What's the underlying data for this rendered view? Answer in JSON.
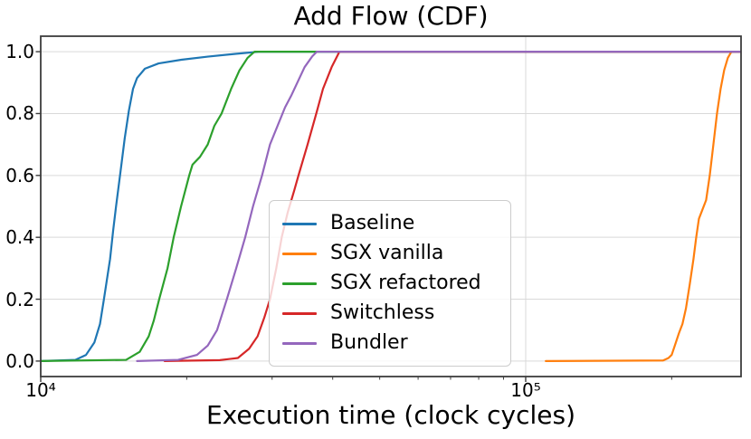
{
  "title": {
    "text": "Add Flow (CDF)"
  },
  "chart_data": {
    "type": "line",
    "title": "Add Flow (CDF)",
    "xlabel": "Execution time (clock cycles)",
    "ylabel": "",
    "x_scale": "log",
    "x_range": [
      10000,
      278000
    ],
    "y_range": [
      -0.05,
      1.05
    ],
    "grid": true,
    "legend_position": "inside lower-center",
    "x_ticks": [
      {
        "value": 10000,
        "label": "10⁴"
      },
      {
        "value": 100000,
        "label": "10⁵"
      }
    ],
    "x_minor_ticks": [
      20000,
      30000,
      40000,
      50000,
      60000,
      70000,
      80000,
      90000,
      200000
    ],
    "y_ticks": [
      {
        "value": 0.0,
        "label": "0.0"
      },
      {
        "value": 0.2,
        "label": "0.2"
      },
      {
        "value": 0.4,
        "label": "0.4"
      },
      {
        "value": 0.6,
        "label": "0.6"
      },
      {
        "value": 0.8,
        "label": "0.8"
      },
      {
        "value": 1.0,
        "label": "1.0"
      }
    ],
    "series": [
      {
        "name": "Baseline",
        "color": "#1f77b4",
        "points": [
          [
            10000,
            0
          ],
          [
            11800,
            0.004
          ],
          [
            12400,
            0.02
          ],
          [
            12900,
            0.06
          ],
          [
            13250,
            0.12
          ],
          [
            13500,
            0.2
          ],
          [
            13900,
            0.33
          ],
          [
            14100,
            0.42
          ],
          [
            14300,
            0.5
          ],
          [
            14600,
            0.61
          ],
          [
            14900,
            0.72
          ],
          [
            15200,
            0.81
          ],
          [
            15500,
            0.88
          ],
          [
            15800,
            0.915
          ],
          [
            16400,
            0.945
          ],
          [
            17500,
            0.962
          ],
          [
            19500,
            0.974
          ],
          [
            22100,
            0.984
          ],
          [
            25200,
            0.993
          ],
          [
            28300,
            1.0
          ],
          [
            280000,
            1.0
          ]
        ]
      },
      {
        "name": "SGX vanilla",
        "color": "#ff7f0e",
        "points": [
          [
            110000,
            0
          ],
          [
            192000,
            0.002
          ],
          [
            197000,
            0.01
          ],
          [
            200000,
            0.02
          ],
          [
            204000,
            0.06
          ],
          [
            207000,
            0.09
          ],
          [
            210500,
            0.12
          ],
          [
            214000,
            0.17
          ],
          [
            218000,
            0.25
          ],
          [
            221800,
            0.33
          ],
          [
            224700,
            0.4
          ],
          [
            227600,
            0.46
          ],
          [
            231500,
            0.49
          ],
          [
            235500,
            0.52
          ],
          [
            239600,
            0.6
          ],
          [
            243800,
            0.7
          ],
          [
            248000,
            0.8
          ],
          [
            252300,
            0.88
          ],
          [
            256600,
            0.94
          ],
          [
            261100,
            0.98
          ],
          [
            265600,
            1.0
          ],
          [
            280000,
            1.0
          ]
        ]
      },
      {
        "name": "SGX refactored",
        "color": "#2ca02c",
        "points": [
          [
            10000,
            0
          ],
          [
            15000,
            0.004
          ],
          [
            16000,
            0.03
          ],
          [
            16700,
            0.08
          ],
          [
            17100,
            0.13
          ],
          [
            17550,
            0.2
          ],
          [
            18260,
            0.3
          ],
          [
            18800,
            0.4
          ],
          [
            19470,
            0.5
          ],
          [
            20240,
            0.6
          ],
          [
            20560,
            0.635
          ],
          [
            21300,
            0.66
          ],
          [
            22100,
            0.7
          ],
          [
            22800,
            0.76
          ],
          [
            23600,
            0.8
          ],
          [
            24700,
            0.88
          ],
          [
            25700,
            0.94
          ],
          [
            26700,
            0.98
          ],
          [
            27600,
            1.0
          ],
          [
            280000,
            1.0
          ]
        ]
      },
      {
        "name": "Switchless",
        "color": "#d62728",
        "points": [
          [
            18000,
            0
          ],
          [
            23400,
            0.003
          ],
          [
            25500,
            0.01
          ],
          [
            26900,
            0.04
          ],
          [
            28000,
            0.08
          ],
          [
            28900,
            0.14
          ],
          [
            29700,
            0.2
          ],
          [
            30600,
            0.3
          ],
          [
            31400,
            0.4
          ],
          [
            32300,
            0.48
          ],
          [
            33300,
            0.55
          ],
          [
            34000,
            0.6
          ],
          [
            35500,
            0.7
          ],
          [
            37000,
            0.8
          ],
          [
            38200,
            0.88
          ],
          [
            39800,
            0.95
          ],
          [
            41300,
            1.0
          ],
          [
            280000,
            1.0
          ]
        ]
      },
      {
        "name": "Bundler",
        "color": "#9467bd",
        "points": [
          [
            15800,
            0
          ],
          [
            19200,
            0.004
          ],
          [
            21000,
            0.02
          ],
          [
            22100,
            0.05
          ],
          [
            23100,
            0.1
          ],
          [
            24200,
            0.2
          ],
          [
            25300,
            0.3
          ],
          [
            26400,
            0.4
          ],
          [
            27400,
            0.5
          ],
          [
            28600,
            0.6
          ],
          [
            29700,
            0.7
          ],
          [
            31900,
            0.82
          ],
          [
            32900,
            0.86
          ],
          [
            35000,
            0.95
          ],
          [
            36300,
            0.985
          ],
          [
            37100,
            1.0
          ],
          [
            280000,
            1.0
          ]
        ]
      }
    ]
  },
  "legend": {
    "items": [
      {
        "label": "Baseline",
        "color": "#1f77b4"
      },
      {
        "label": "SGX vanilla",
        "color": "#ff7f0e"
      },
      {
        "label": "SGX refactored",
        "color": "#2ca02c"
      },
      {
        "label": "Switchless",
        "color": "#d62728"
      },
      {
        "label": "Bundler",
        "color": "#9467bd"
      }
    ]
  },
  "style": {
    "grid_color": "#d9d9d9",
    "spine_color": "#3c3c3c",
    "background": "#ffffff"
  }
}
